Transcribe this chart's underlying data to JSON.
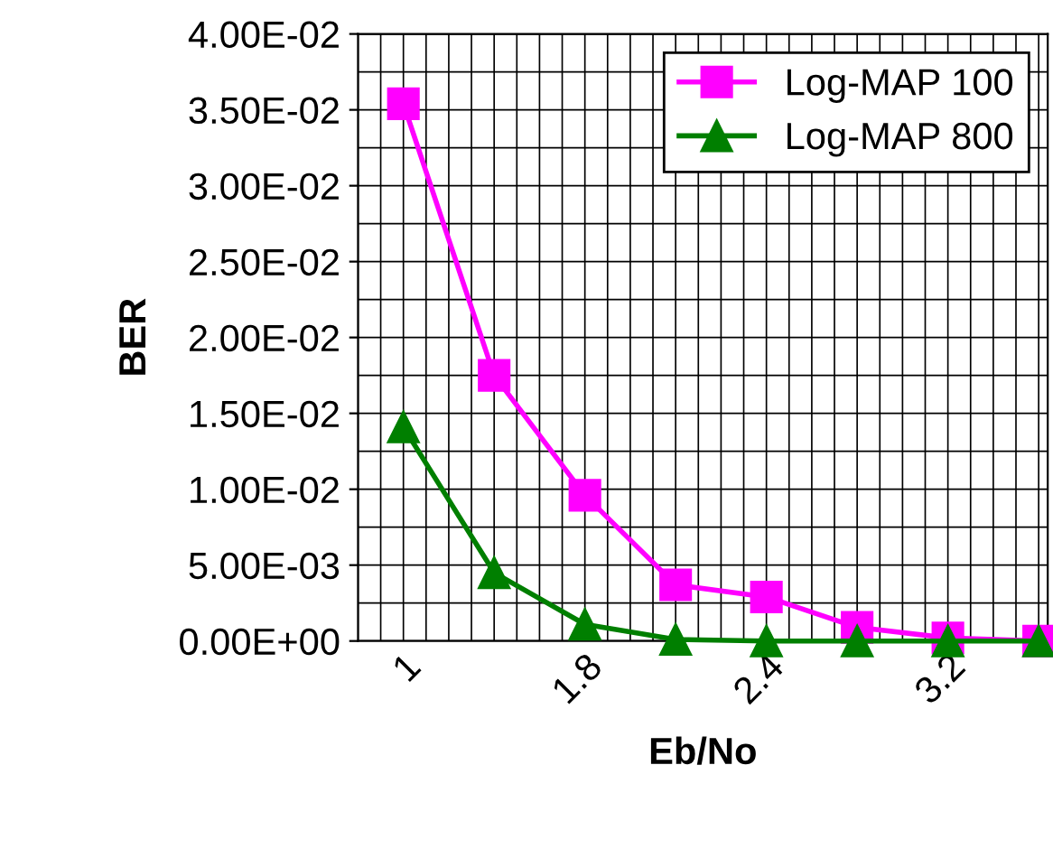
{
  "chart_data": {
    "type": "line",
    "xlabel": "Eb/No",
    "ylabel": "BER",
    "categories": [
      "1",
      null,
      "1.8",
      null,
      "2.4",
      null,
      "3.2",
      null
    ],
    "series": [
      {
        "name": "Log-MAP 100",
        "color": "#ff00ff",
        "marker": "square",
        "values": [
          0.0354,
          0.0175,
          0.0096,
          0.0037,
          0.0029,
          0.0009,
          0.0002,
          0.0
        ]
      },
      {
        "name": "Log-MAP 800",
        "color": "#007f00",
        "marker": "triangle",
        "values": [
          0.0141,
          0.0045,
          0.0011,
          0.0001,
          0.0,
          0.0,
          0.0,
          0.0
        ]
      }
    ],
    "ylim": [
      0,
      0.04
    ],
    "yticks": [
      {
        "value": 0,
        "label": "0.00E+00"
      },
      {
        "value": 0.005,
        "label": "5.00E-03"
      },
      {
        "value": 0.01,
        "label": "1.00E-02"
      },
      {
        "value": 0.015,
        "label": "1.50E-02"
      },
      {
        "value": 0.02,
        "label": "2.00E-02"
      },
      {
        "value": 0.025,
        "label": "2.50E-02"
      },
      {
        "value": 0.03,
        "label": "3.00E-02"
      },
      {
        "value": 0.035,
        "label": "3.50E-02"
      },
      {
        "value": 0.04,
        "label": "4.00E-02"
      }
    ],
    "grid": true,
    "legend": "top right"
  }
}
